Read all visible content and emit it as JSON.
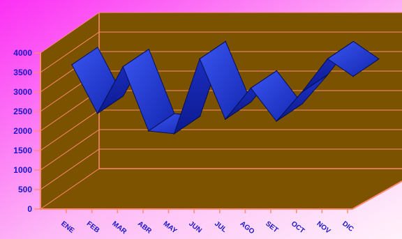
{
  "chart_data": {
    "type": "line",
    "style": "3d-ribbon",
    "categories": [
      "ENE",
      "FEB",
      "MAR",
      "ABR",
      "MAY",
      "JUN",
      "JUL",
      "AGO",
      "SET",
      "OCT",
      "NOV",
      "DIC"
    ],
    "values": [
      3700,
      2450,
      3650,
      2000,
      1930,
      3850,
      2300,
      3100,
      2250,
      3000,
      3850,
      3400
    ],
    "ylim": [
      0,
      4000
    ],
    "yticks": [
      "0",
      "500",
      "1000",
      "1500",
      "2000",
      "2500",
      "3000",
      "3500",
      "4000"
    ],
    "title": "",
    "xlabel": "",
    "ylabel": "",
    "grid": true,
    "legend": "none"
  },
  "colors": {
    "background_top": "#fc30f4",
    "background_bottom": "#fff2fb",
    "plot_wall": "#7a5200",
    "plot_floor": "#7d5300",
    "wall_edges": "#ff8a6f",
    "ribbon": "#1b2fd0",
    "tick_text": "#1a16c8"
  }
}
